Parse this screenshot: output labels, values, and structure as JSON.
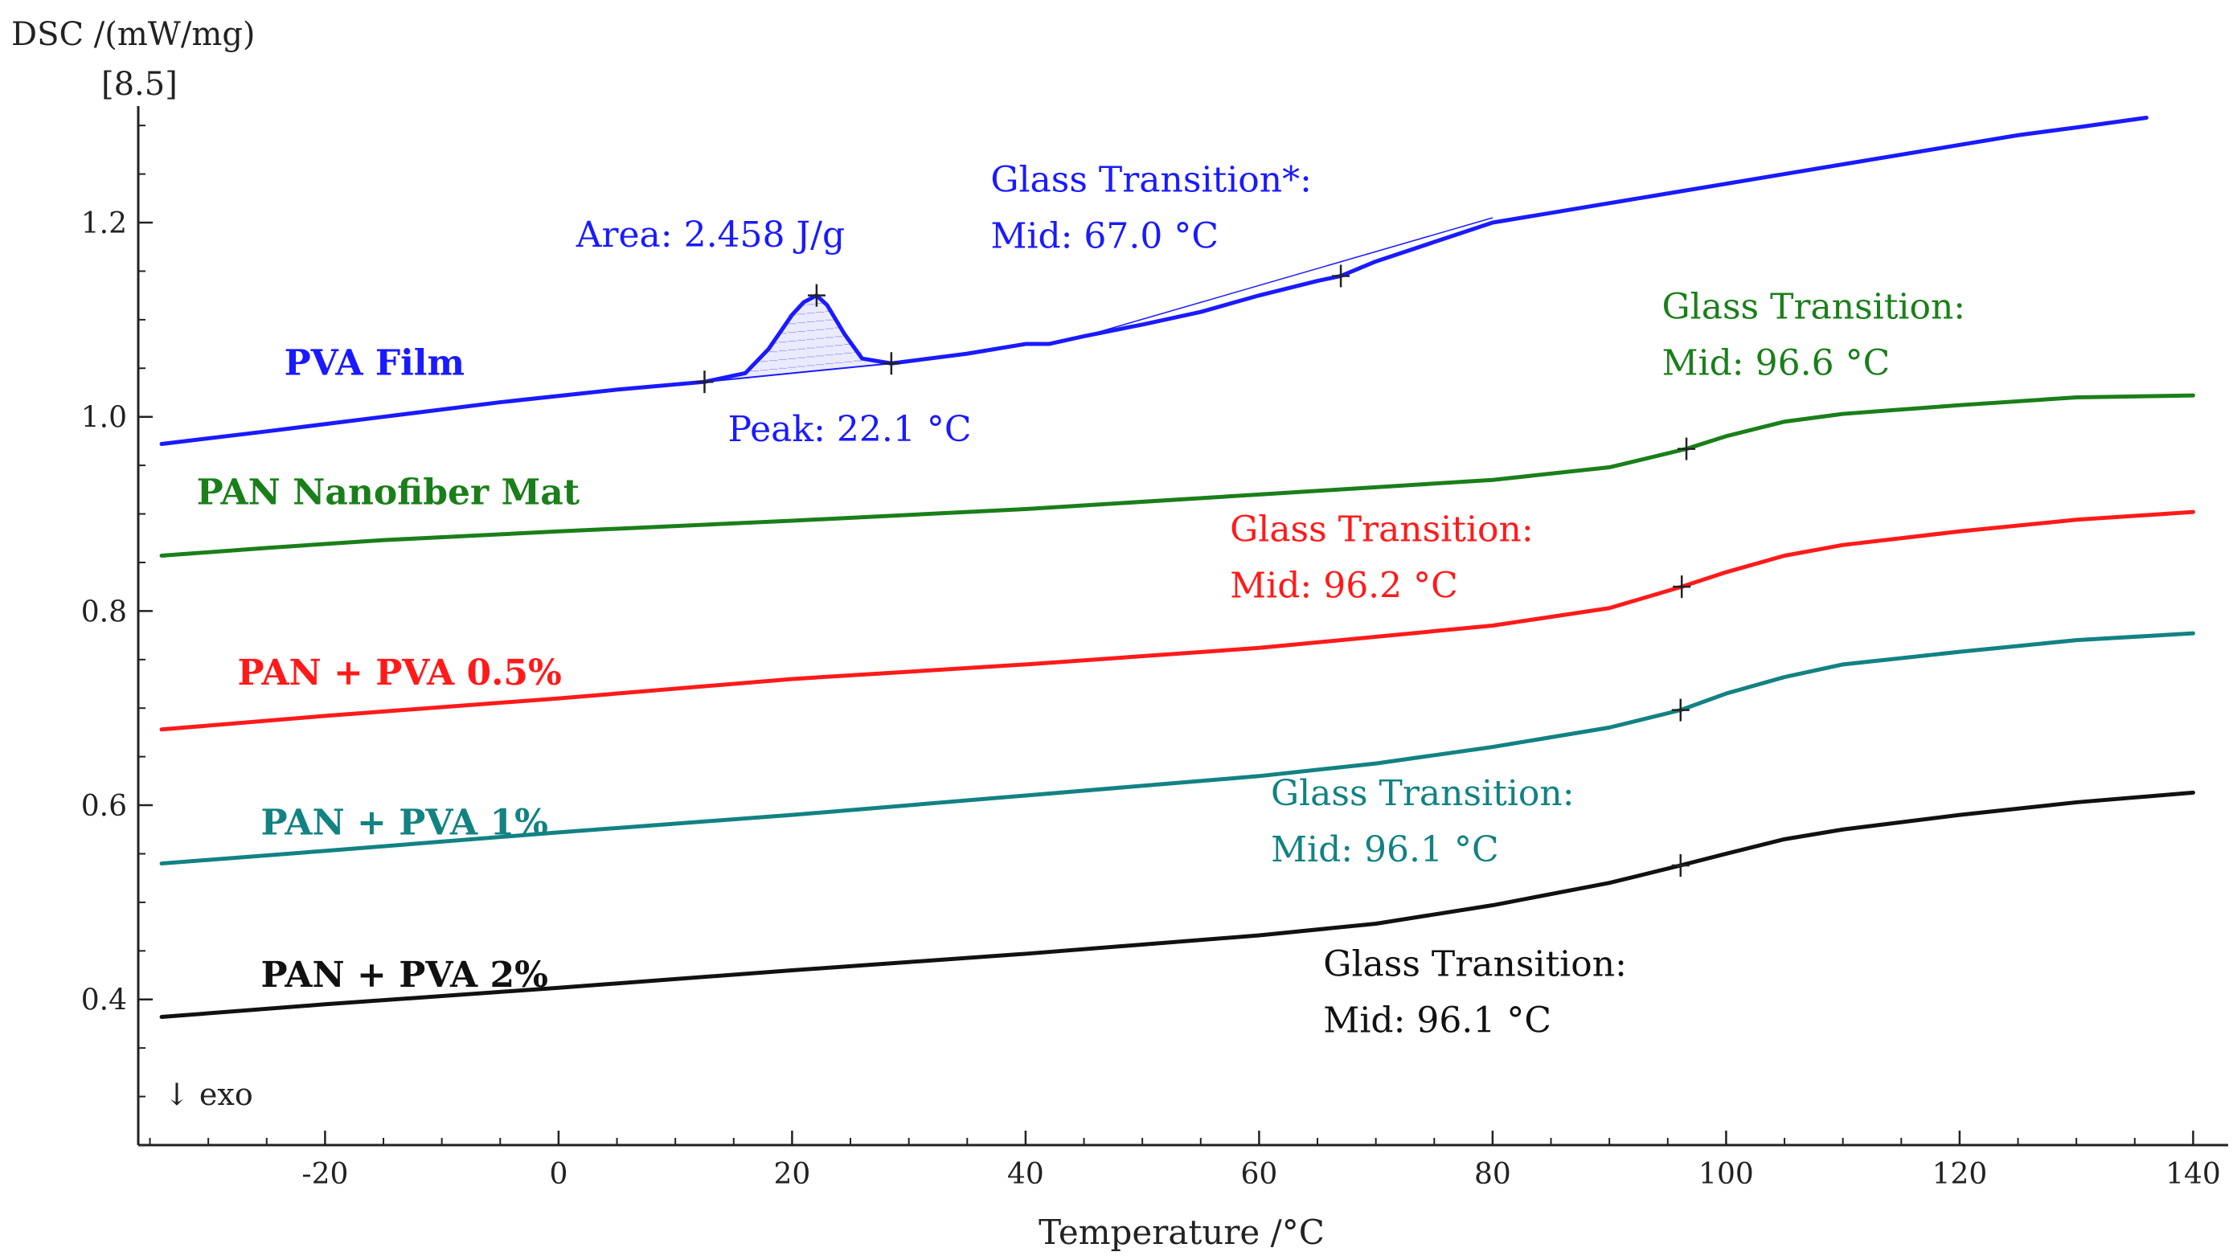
{
  "chart_data": {
    "type": "line",
    "title": "",
    "ylabel": "DSC /(mW/mg)",
    "ylabel_extra": "[8.5]",
    "xlabel": "Temperature /°C",
    "xlim": [
      -36,
      143
    ],
    "ylim": [
      0.25,
      1.32
    ],
    "x_ticks": [
      -20,
      0,
      20,
      40,
      60,
      80,
      100,
      120,
      140
    ],
    "y_ticks": [
      0.4,
      0.6,
      0.8,
      1.0,
      1.2
    ],
    "x_tick_labels": [
      "-20",
      "0",
      "20",
      "40",
      "60",
      "80",
      "100",
      "120",
      "140"
    ],
    "y_tick_labels": [
      "0.4",
      "0.6",
      "0.8",
      "1.0",
      "1.2"
    ],
    "exo_note": "↓ exo",
    "series": [
      {
        "name": "PVA Film",
        "color": "#1a1aff",
        "x": [
          -34,
          -25,
          -15,
          -5,
          5,
          12.5,
          16,
          18,
          20,
          21,
          22.1,
          23,
          24.5,
          26,
          28.5,
          35,
          40,
          42,
          45,
          50,
          55,
          60,
          65,
          67,
          70,
          75,
          80,
          85,
          90,
          95,
          100,
          105,
          110,
          115,
          120,
          125,
          130,
          136
        ],
        "values": [
          0.972,
          0.985,
          1.0,
          1.015,
          1.028,
          1.036,
          1.045,
          1.07,
          1.105,
          1.118,
          1.125,
          1.115,
          1.085,
          1.06,
          1.055,
          1.065,
          1.075,
          1.075,
          1.083,
          1.095,
          1.108,
          1.125,
          1.14,
          1.145,
          1.16,
          1.18,
          1.2,
          1.21,
          1.22,
          1.23,
          1.24,
          1.25,
          1.26,
          1.27,
          1.28,
          1.29,
          1.298,
          1.308
        ]
      },
      {
        "name": "PAN Nanofiber Mat",
        "color": "#1a7f1a",
        "x": [
          -34,
          -25,
          -15,
          0,
          20,
          40,
          60,
          80,
          90,
          96.6,
          100,
          105,
          110,
          120,
          130,
          140
        ],
        "values": [
          0.857,
          0.865,
          0.873,
          0.882,
          0.893,
          0.905,
          0.92,
          0.935,
          0.948,
          0.967,
          0.98,
          0.995,
          1.003,
          1.012,
          1.02,
          1.022
        ]
      },
      {
        "name": "PAN + PVA 0.5%",
        "color": "#ff1a1a",
        "x": [
          -34,
          -20,
          0,
          20,
          40,
          60,
          80,
          90,
          96.2,
          100,
          105,
          110,
          120,
          130,
          140
        ],
        "values": [
          0.678,
          0.692,
          0.71,
          0.73,
          0.745,
          0.762,
          0.785,
          0.803,
          0.825,
          0.84,
          0.857,
          0.868,
          0.882,
          0.894,
          0.902
        ]
      },
      {
        "name": "PAN + PVA 1%",
        "color": "#128282",
        "x": [
          -34,
          -20,
          0,
          20,
          40,
          60,
          70,
          80,
          90,
          96.1,
          100,
          105,
          110,
          120,
          130,
          140
        ],
        "values": [
          0.54,
          0.553,
          0.572,
          0.59,
          0.61,
          0.63,
          0.643,
          0.66,
          0.68,
          0.698,
          0.715,
          0.732,
          0.745,
          0.758,
          0.77,
          0.777
        ]
      },
      {
        "name": "PAN + PVA 2%",
        "color": "#111111",
        "x": [
          -34,
          -20,
          0,
          20,
          40,
          60,
          70,
          80,
          90,
          96.1,
          100,
          105,
          110,
          120,
          130,
          140
        ],
        "values": [
          0.382,
          0.395,
          0.412,
          0.43,
          0.447,
          0.466,
          0.478,
          0.497,
          0.52,
          0.538,
          0.55,
          0.565,
          0.575,
          0.59,
          0.603,
          0.613
        ]
      }
    ],
    "markers": [
      {
        "series": 0,
        "x": 12.5,
        "y": 1.036
      },
      {
        "series": 0,
        "x": 22.1,
        "y": 1.125
      },
      {
        "series": 0,
        "x": 28.5,
        "y": 1.055
      },
      {
        "series": 0,
        "x": 67.0,
        "y": 1.145
      },
      {
        "series": 1,
        "x": 96.6,
        "y": 0.967
      },
      {
        "series": 2,
        "x": 96.2,
        "y": 0.825
      },
      {
        "series": 3,
        "x": 96.1,
        "y": 0.698
      },
      {
        "series": 4,
        "x": 96.1,
        "y": 0.538
      }
    ],
    "series_labels": [
      {
        "text": "PVA Film",
        "color": "#1a1aff",
        "x": -23.5,
        "y": 1.043
      },
      {
        "text": "PAN Nanofiber Mat",
        "color": "#1a7f1a",
        "x": -31,
        "y": 0.91
      },
      {
        "text": "PAN + PVA 0.5%",
        "color": "#ff1a1a",
        "x": -27.5,
        "y": 0.724
      },
      {
        "text": "PAN + PVA 1%",
        "color": "#128282",
        "x": -25.5,
        "y": 0.57
      },
      {
        "text": "PAN + PVA 2%",
        "color": "#111111",
        "x": -25.5,
        "y": 0.413
      }
    ],
    "annotations": [
      {
        "lines": [
          "Area: 2.458 J/g"
        ],
        "color": "#1a1aff",
        "x": 1.5,
        "y": 1.175
      },
      {
        "lines": [
          "Peak: 22.1 °C"
        ],
        "color": "#1a1aff",
        "x": 14.5,
        "y": 0.975
      },
      {
        "lines": [
          "Glass Transition*:",
          "Mid:  67.0 °C"
        ],
        "color": "#1a1aff",
        "x": 37,
        "y": 1.232
      },
      {
        "lines": [
          "Glass Transition:",
          "Mid:  96.6 °C"
        ],
        "color": "#1a7f1a",
        "x": 94.5,
        "y": 1.101
      },
      {
        "lines": [
          "Glass Transition:",
          "Mid:  96.2 °C"
        ],
        "color": "#ff1a1a",
        "x": 57.5,
        "y": 0.872
      },
      {
        "lines": [
          "Glass Transition:",
          "Mid:  96.1 °C"
        ],
        "color": "#128282",
        "x": 61,
        "y": 0.6
      },
      {
        "lines": [
          "Glass Transition:",
          "Mid:  96.1 °C"
        ],
        "color": "#111111",
        "x": 65.5,
        "y": 0.424
      }
    ]
  }
}
